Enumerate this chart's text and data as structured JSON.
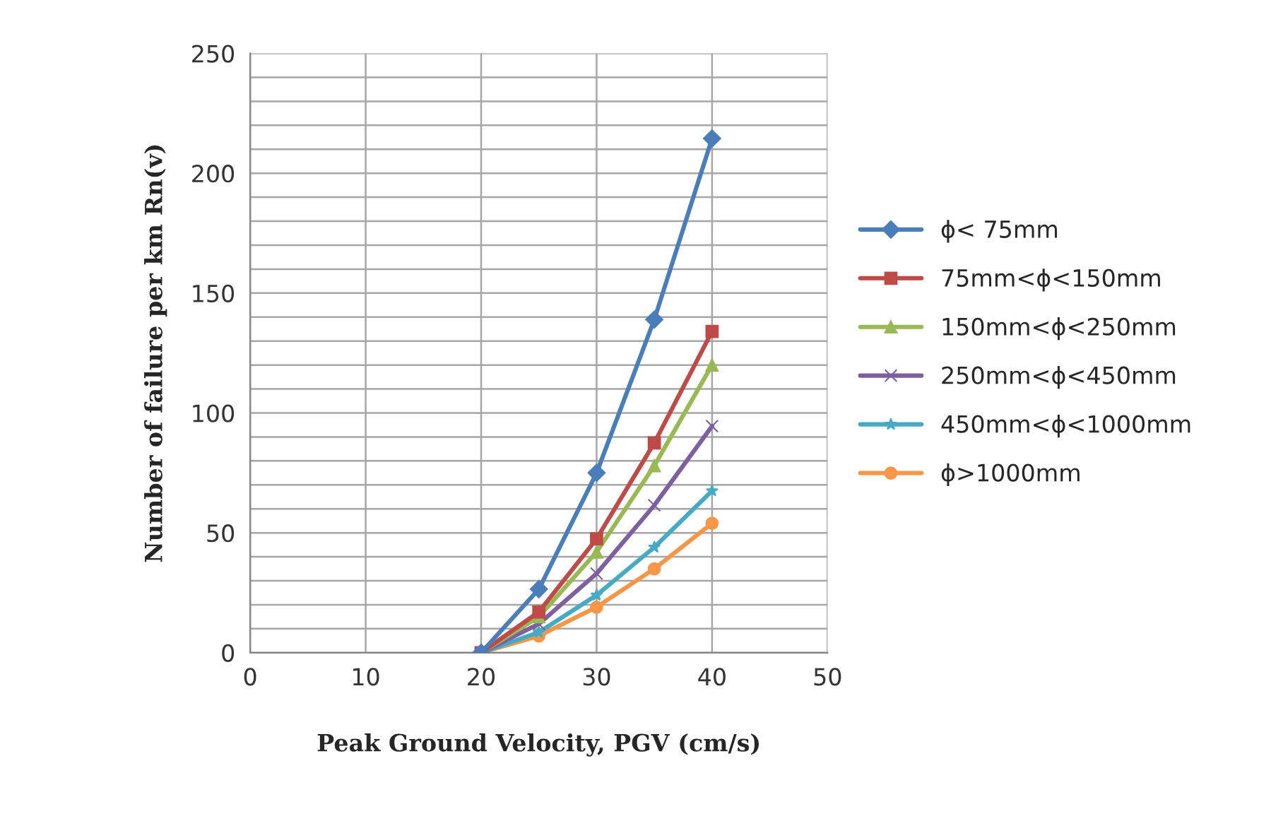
{
  "chart_data": {
    "type": "line",
    "xlabel": "Peak Ground Velocity, PGV (cm/s)",
    "ylabel": "Number of failure per km Rn(v)",
    "x": [
      20,
      25,
      30,
      35,
      40
    ],
    "series": [
      {
        "name": "ϕ< 75mm",
        "color": "#4a7ebb",
        "marker": "diamond",
        "values": [
          0,
          26.5,
          75,
          139,
          214.5
        ]
      },
      {
        "name": "75mm<ϕ<150mm",
        "color": "#be4b48",
        "marker": "square",
        "values": [
          0,
          17,
          47.5,
          87.5,
          134
        ]
      },
      {
        "name": "150mm<ϕ<250mm",
        "color": "#98b954",
        "marker": "triangle",
        "values": [
          0,
          15,
          42,
          78,
          120
        ]
      },
      {
        "name": "250mm<ϕ<450mm",
        "color": "#7d60a0",
        "marker": "cross",
        "values": [
          0,
          12,
          33,
          61.5,
          94.5
        ]
      },
      {
        "name": "450mm<ϕ<1000mm",
        "color": "#46aac5",
        "marker": "star",
        "values": [
          0,
          8.5,
          24,
          44,
          67.5
        ]
      },
      {
        "name": "ϕ>1000mm",
        "color": "#f79646",
        "marker": "circle",
        "values": [
          0,
          7,
          19,
          35,
          54
        ]
      }
    ],
    "xlim": [
      0,
      50
    ],
    "xticks": [
      0,
      10,
      20,
      30,
      40,
      50
    ],
    "ylim": [
      0,
      250
    ],
    "yticks": [
      0,
      {
        "value": 10,
        "label": null
      },
      {
        "value": 20,
        "label": null
      },
      {
        "value": 30,
        "label": null
      },
      {
        "value": 40,
        "label": null
      },
      50,
      {
        "value": 60,
        "label": null
      },
      {
        "value": 70,
        "label": null
      },
      {
        "value": 80,
        "label": null
      },
      {
        "value": 90,
        "label": null
      },
      100,
      {
        "value": 110,
        "label": null
      },
      {
        "value": 120,
        "label": null
      },
      {
        "value": 130,
        "label": null
      },
      {
        "value": 140,
        "label": null
      },
      150,
      {
        "value": 160,
        "label": null
      },
      {
        "value": 170,
        "label": null
      },
      {
        "value": 180,
        "label": null
      },
      {
        "value": 190,
        "label": null
      },
      200,
      {
        "value": 210,
        "label": null
      },
      {
        "value": 220,
        "label": null
      },
      {
        "value": 230,
        "label": null
      },
      {
        "value": 240,
        "label": null
      },
      250
    ],
    "grid": true,
    "legend": "right",
    "line_style": "solid"
  }
}
